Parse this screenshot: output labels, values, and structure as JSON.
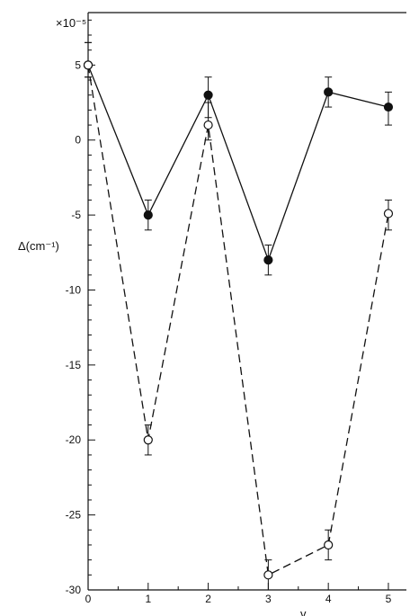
{
  "chart_data": {
    "type": "line",
    "title": "",
    "xlabel": "v",
    "ylabel": "Δ(cm⁻¹)",
    "y_multiplier": "×10⁻⁵",
    "xlim": [
      0,
      5.3
    ],
    "ylim": [
      -30,
      8.5
    ],
    "x_ticks": [
      0,
      1,
      2,
      3,
      4,
      5
    ],
    "y_ticks": [
      5,
      0,
      -5,
      -10,
      -15,
      -20,
      -25,
      -30
    ],
    "grid": false,
    "legend": "none",
    "x": [
      0,
      1,
      2,
      3,
      4,
      5
    ],
    "series": [
      {
        "marker": "filled-circle",
        "line_style": "solid",
        "values": [
          5,
          -5,
          3,
          -8,
          3.2,
          2.2
        ],
        "error_low": [
          4.2,
          -6,
          1.5,
          -9,
          2.2,
          1
        ],
        "error_high": [
          6.5,
          -4,
          4.2,
          -7,
          4.2,
          3.2
        ]
      },
      {
        "marker": "open-circle",
        "line_style": "dashed",
        "values": [
          5,
          -20,
          1,
          -29,
          -27,
          -4.9
        ],
        "error_low": [
          4.2,
          -21,
          0,
          -30,
          -28,
          -6
        ],
        "error_high": [
          6.5,
          -19,
          2.5,
          -28,
          -26,
          -4
        ]
      }
    ]
  }
}
